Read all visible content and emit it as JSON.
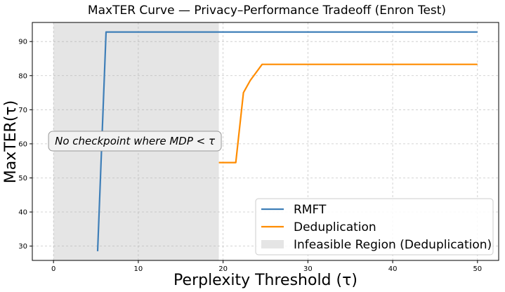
{
  "chart_data": {
    "type": "line",
    "title": "MaxTER Curve — Privacy–Performance Tradeoff (Enron Test)",
    "xlabel": "Perplexity Threshold (τ)",
    "ylabel": "MaxTER(τ)",
    "xlim": [
      -2.5,
      52.5
    ],
    "ylim": [
      25.8,
      95.6
    ],
    "xticks": [
      0,
      10,
      20,
      30,
      40,
      50
    ],
    "yticks": [
      30,
      40,
      50,
      60,
      70,
      80,
      90
    ],
    "grid": true,
    "legend_position": "lower-right",
    "series": [
      {
        "name": "RMFT",
        "color": "#3f7fb8",
        "x": [
          5.2,
          6.2,
          50
        ],
        "y": [
          28.5,
          92.8,
          92.8
        ]
      },
      {
        "name": "Deduplication",
        "color": "#ff8c00",
        "x": [
          19.5,
          21.5,
          22.4,
          23.2,
          24.6,
          50
        ],
        "y": [
          54.5,
          54.5,
          75,
          78.6,
          83.3,
          83.3
        ]
      }
    ],
    "shaded_region": {
      "name": "Infeasible Region (Deduplication)",
      "x": [
        0,
        19.5
      ],
      "color": "#e5e5e5"
    },
    "annotation": {
      "text": "No checkpoint where MDP < τ",
      "x": 9.6,
      "y": 60.8
    }
  }
}
